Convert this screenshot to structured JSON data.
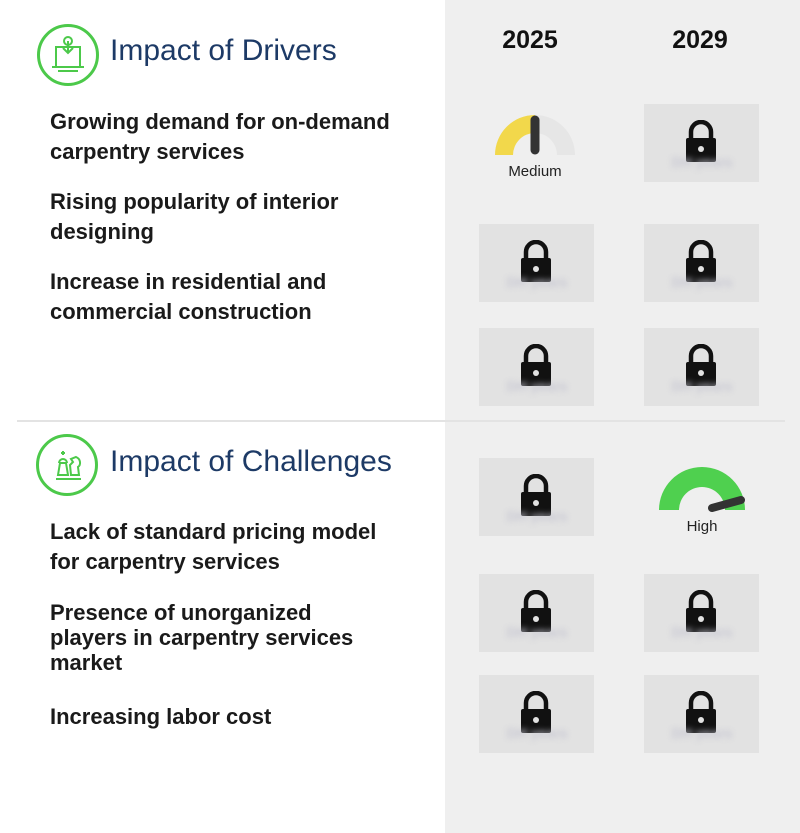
{
  "header": {
    "year_2025": "2025",
    "year_2029": "2029"
  },
  "drivers": {
    "title": "Impact of Drivers",
    "icon": "drivers-gear-icon",
    "items": [
      {
        "lines": [
          "Growing demand for on-demand",
          "carpentry services"
        ]
      },
      {
        "lines": [
          "Rising popularity of interior",
          "designing"
        ]
      },
      {
        "lines": [
          "Increase in residential and",
          "commercial construction"
        ]
      }
    ],
    "gauge_2025": {
      "label": "Medium",
      "level": "medium",
      "color": "#f2d84b"
    }
  },
  "challenges": {
    "title": "Impact of Challenges",
    "icon": "chess-icon",
    "items": [
      {
        "lines": [
          "Lack of standard pricing model",
          "for carpentry services"
        ]
      },
      {
        "lines": [
          "Presence of unorganized",
          "players in carpentry services",
          "market"
        ]
      },
      {
        "lines": [
          "Increasing labor cost"
        ]
      }
    ],
    "gauge_2029": {
      "label": "High",
      "level": "high",
      "color": "#4fd04f"
    }
  },
  "locked_label": "DH years",
  "colors": {
    "accent_green": "#4cc94a",
    "title_blue": "#1d3a66"
  }
}
